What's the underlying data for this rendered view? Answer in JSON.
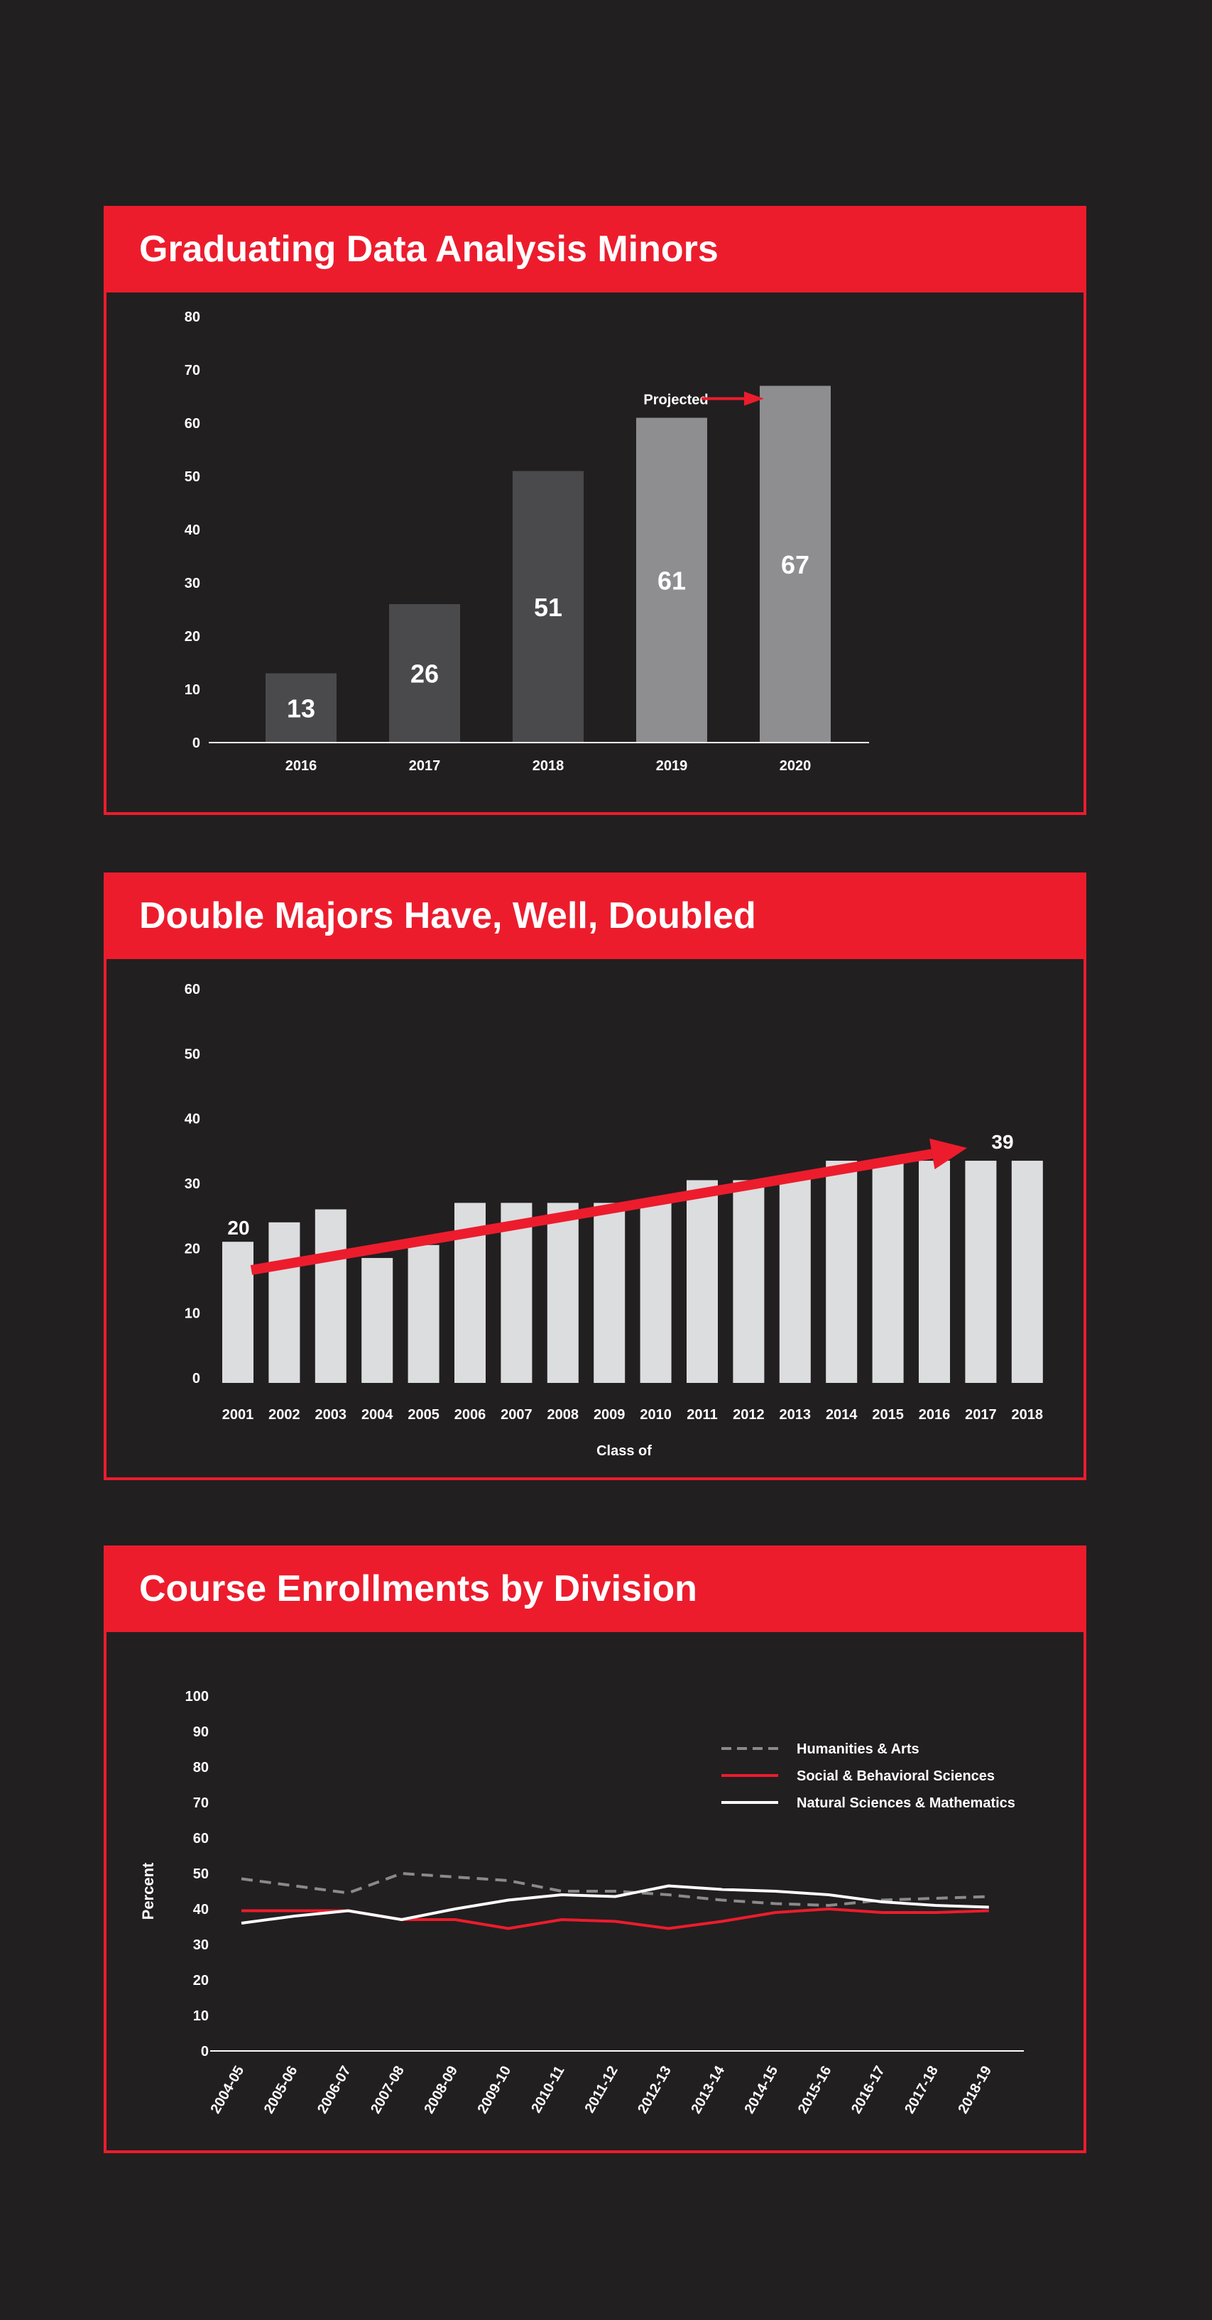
{
  "colors": {
    "background": "#221f20",
    "accent": "#ec1c2d",
    "bar_past": "#4a4a4c",
    "bar_projected": "#8e8e91",
    "bar_light": "#dcdddf",
    "humanities": "#8a8a8a",
    "social": "#ec1c2d",
    "natural": "#ffffff"
  },
  "chart_data": [
    {
      "type": "bar",
      "title": "Graduating Data Analysis Minors",
      "categories": [
        "2016",
        "2017",
        "2018",
        "2019",
        "2020"
      ],
      "values": [
        13,
        26,
        51,
        61,
        67
      ],
      "data_labels": [
        "13",
        "26",
        "51",
        "61",
        "67"
      ],
      "projected": [
        false,
        false,
        false,
        true,
        true
      ],
      "ylim": [
        0,
        80
      ],
      "yticks": [
        0,
        10,
        20,
        30,
        40,
        50,
        60,
        70,
        80
      ],
      "annotation": "Projected",
      "xlabel": "",
      "ylabel": ""
    },
    {
      "type": "bar",
      "title": "Double Majors Have, Well, Doubled",
      "categories": [
        "2001",
        "2002",
        "2003",
        "2004",
        "2005",
        "2006",
        "2007",
        "2008",
        "2009",
        "2010",
        "2011",
        "2012",
        "2013",
        "2014",
        "2015",
        "2016",
        "2017",
        "2018"
      ],
      "values": [
        21,
        24,
        26,
        18.5,
        20.5,
        27,
        27,
        27,
        27,
        27,
        30.5,
        30.5,
        31,
        33.5,
        33.5,
        33.5,
        33.5,
        33.5
      ],
      "ylim": [
        0,
        60
      ],
      "yticks": [
        0,
        10,
        20,
        30,
        40,
        50,
        60
      ],
      "trend": {
        "from": 20,
        "to": 39,
        "start_label": "20",
        "end_label": "39"
      },
      "xlabel": "Class of",
      "ylabel": ""
    },
    {
      "type": "line",
      "title": "Course Enrollments by Division",
      "categories": [
        "2004-05",
        "2005-06",
        "2006-07",
        "2007-08",
        "2008-09",
        "2009-10",
        "2010-11",
        "2011-12",
        "2012-13",
        "2013-14",
        "2014-15",
        "2015-16",
        "2016-17",
        "2017-18",
        "2018-19"
      ],
      "series": [
        {
          "name": "Humanities & Arts",
          "style": "dashed",
          "values": [
            48.5,
            46.5,
            44.5,
            50,
            49,
            48,
            45,
            45,
            44,
            42.5,
            41.5,
            41,
            42.5,
            43,
            43.5
          ]
        },
        {
          "name": "Social & Behavioral Sciences",
          "style": "solid",
          "values": [
            39.5,
            39.5,
            39.5,
            37,
            37,
            34.5,
            37,
            36.5,
            34.5,
            36.5,
            39,
            40,
            39,
            39,
            39.5
          ]
        },
        {
          "name": "Natural Sciences & Mathematics",
          "style": "solid",
          "values": [
            36,
            38,
            39.5,
            37,
            40,
            42.5,
            44,
            43.5,
            46.5,
            45.5,
            45,
            44,
            42,
            41,
            40.5
          ]
        }
      ],
      "ylim": [
        0,
        100
      ],
      "yticks": [
        0,
        10,
        20,
        30,
        40,
        50,
        60,
        70,
        80,
        90,
        100
      ],
      "ylabel": "Percent",
      "xlabel": "",
      "legend_position": "top-right"
    }
  ]
}
